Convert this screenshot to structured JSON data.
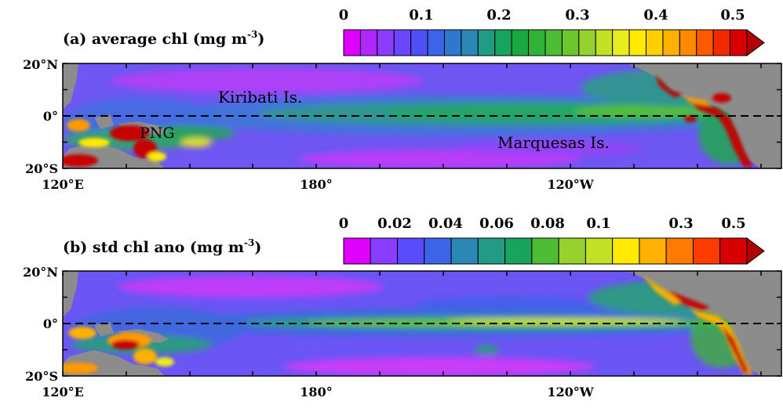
{
  "chart_data": [
    {
      "type": "heatmap",
      "panel_label": "(a) average chl (mg m",
      "unit_exponent": "-3",
      "panel_label_close": ")",
      "x_ticks": [
        "120°E",
        "180°",
        "120°W"
      ],
      "y_ticks": [
        "20°N",
        "0°",
        "20°S"
      ],
      "lon_range": [
        120,
        290
      ],
      "lat_range": [
        -20,
        20
      ],
      "colorbar": {
        "tick_labels": [
          "0",
          "0.1",
          "0.2",
          "0.3",
          "0.4",
          "0.5"
        ],
        "colors": [
          "#e000ff",
          "#b026ff",
          "#8a3cff",
          "#6a46ff",
          "#4d4ff7",
          "#3b64e6",
          "#2f78cf",
          "#2b88b4",
          "#219a86",
          "#18a45e",
          "#1aa83f",
          "#2fb237",
          "#4dbd33",
          "#6ec62f",
          "#96d22b",
          "#c2e024",
          "#e8ee1e",
          "#ffea00",
          "#ffd000",
          "#ffb000",
          "#ff8a00",
          "#ff5a00",
          "#f22a00",
          "#d80000",
          "#b20000"
        ],
        "extend": "max"
      },
      "annotations": [
        "Kiribati Is.",
        "PNG",
        "Marquesas Is."
      ],
      "equator_line": "dashed"
    },
    {
      "type": "heatmap",
      "panel_label": "(b) std chl ano (mg m",
      "unit_exponent": "-3",
      "panel_label_close": ")",
      "x_ticks": [
        "120°E",
        "180°",
        "120°W"
      ],
      "y_ticks": [
        "20°N",
        "0°",
        "20°S"
      ],
      "lon_range": [
        120,
        290
      ],
      "lat_range": [
        -20,
        20
      ],
      "colorbar": {
        "tick_labels": [
          "0",
          "0.02",
          "0.04",
          "0.06",
          "0.08",
          "0.1",
          "0.3",
          "0.5"
        ],
        "colors": [
          "#e000ff",
          "#8a3cff",
          "#5a4bff",
          "#3b64e6",
          "#2b88b4",
          "#219a86",
          "#18a45e",
          "#4dbd33",
          "#96d22b",
          "#c2e024",
          "#ffea00",
          "#ffb000",
          "#ff7a00",
          "#ff3c00",
          "#d80000",
          "#b20000"
        ],
        "extend": "max"
      },
      "annotations": [],
      "equator_line": "dashed"
    }
  ],
  "colors": {
    "land": "#8c8c8c",
    "ocean_low": "#7a55f0",
    "ocean_mid": "#4f73e8",
    "purple_min": "#d33cf6",
    "green": "#22a060",
    "yellow": "#ffec00",
    "orange": "#ff9a00",
    "red": "#c80000"
  }
}
